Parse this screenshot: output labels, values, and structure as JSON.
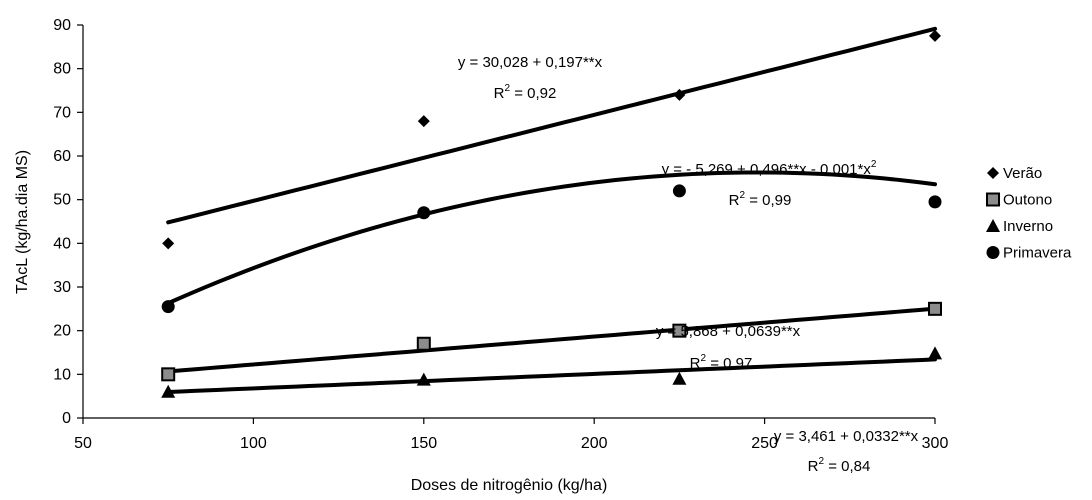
{
  "chart_data": {
    "type": "scatter",
    "xlabel": "Doses de nitrogênio (kg/ha)",
    "ylabel": "TAcL (kg/ha.dia MS)",
    "xlim": [
      50,
      300
    ],
    "ylim": [
      0,
      90
    ],
    "xticks": [
      "50",
      "100",
      "150",
      "200",
      "250",
      "300"
    ],
    "yticks": [
      "0",
      "10",
      "20",
      "30",
      "40",
      "50",
      "60",
      "70",
      "80",
      "90"
    ],
    "grid": false,
    "legend_position": "right",
    "series": [
      {
        "name": "Verão",
        "marker": "diamond",
        "x": [
          75,
          150,
          225,
          300
        ],
        "values": [
          40,
          68,
          74,
          87.5
        ],
        "fit": {
          "type": "linear",
          "coef": [
            30.028,
            0.197
          ]
        },
        "equation": {
          "main": "y = 30,028 + 0,197**x",
          "main_sup": "",
          "r2_prefix": "R",
          "r2_value": " = 0,92"
        }
      },
      {
        "name": "Outono",
        "marker": "square",
        "x": [
          75,
          150,
          225,
          300
        ],
        "values": [
          10,
          17,
          20,
          25
        ],
        "fit": {
          "type": "linear",
          "coef": [
            5.868,
            0.0639
          ]
        },
        "equation": {
          "main": "y = 5,868 + 0,0639**x",
          "main_sup": "",
          "r2_prefix": "R",
          "r2_value": " = 0,97"
        }
      },
      {
        "name": "Inverno",
        "marker": "triangle",
        "x": [
          75,
          150,
          225,
          300
        ],
        "values": [
          6,
          8.8,
          9,
          14.8
        ],
        "fit": {
          "type": "linear",
          "coef": [
            3.461,
            0.0332
          ]
        },
        "equation": {
          "main": "y = 3,461 + 0,0332**x",
          "main_sup": "",
          "r2_prefix": "R",
          "r2_value": " = 0,84"
        }
      },
      {
        "name": "Primavera",
        "marker": "circle",
        "x": [
          75,
          150,
          225,
          300
        ],
        "values": [
          25.5,
          47,
          52,
          49.5
        ],
        "fit": {
          "type": "quadratic",
          "coef": [
            -5.269,
            0.496,
            -0.001
          ]
        },
        "equation": {
          "main": "y = - 5,269 + 0,496**x - 0,001*x",
          "main_sup": "2",
          "r2_prefix": "R",
          "r2_value": " = 0,99"
        }
      }
    ]
  }
}
